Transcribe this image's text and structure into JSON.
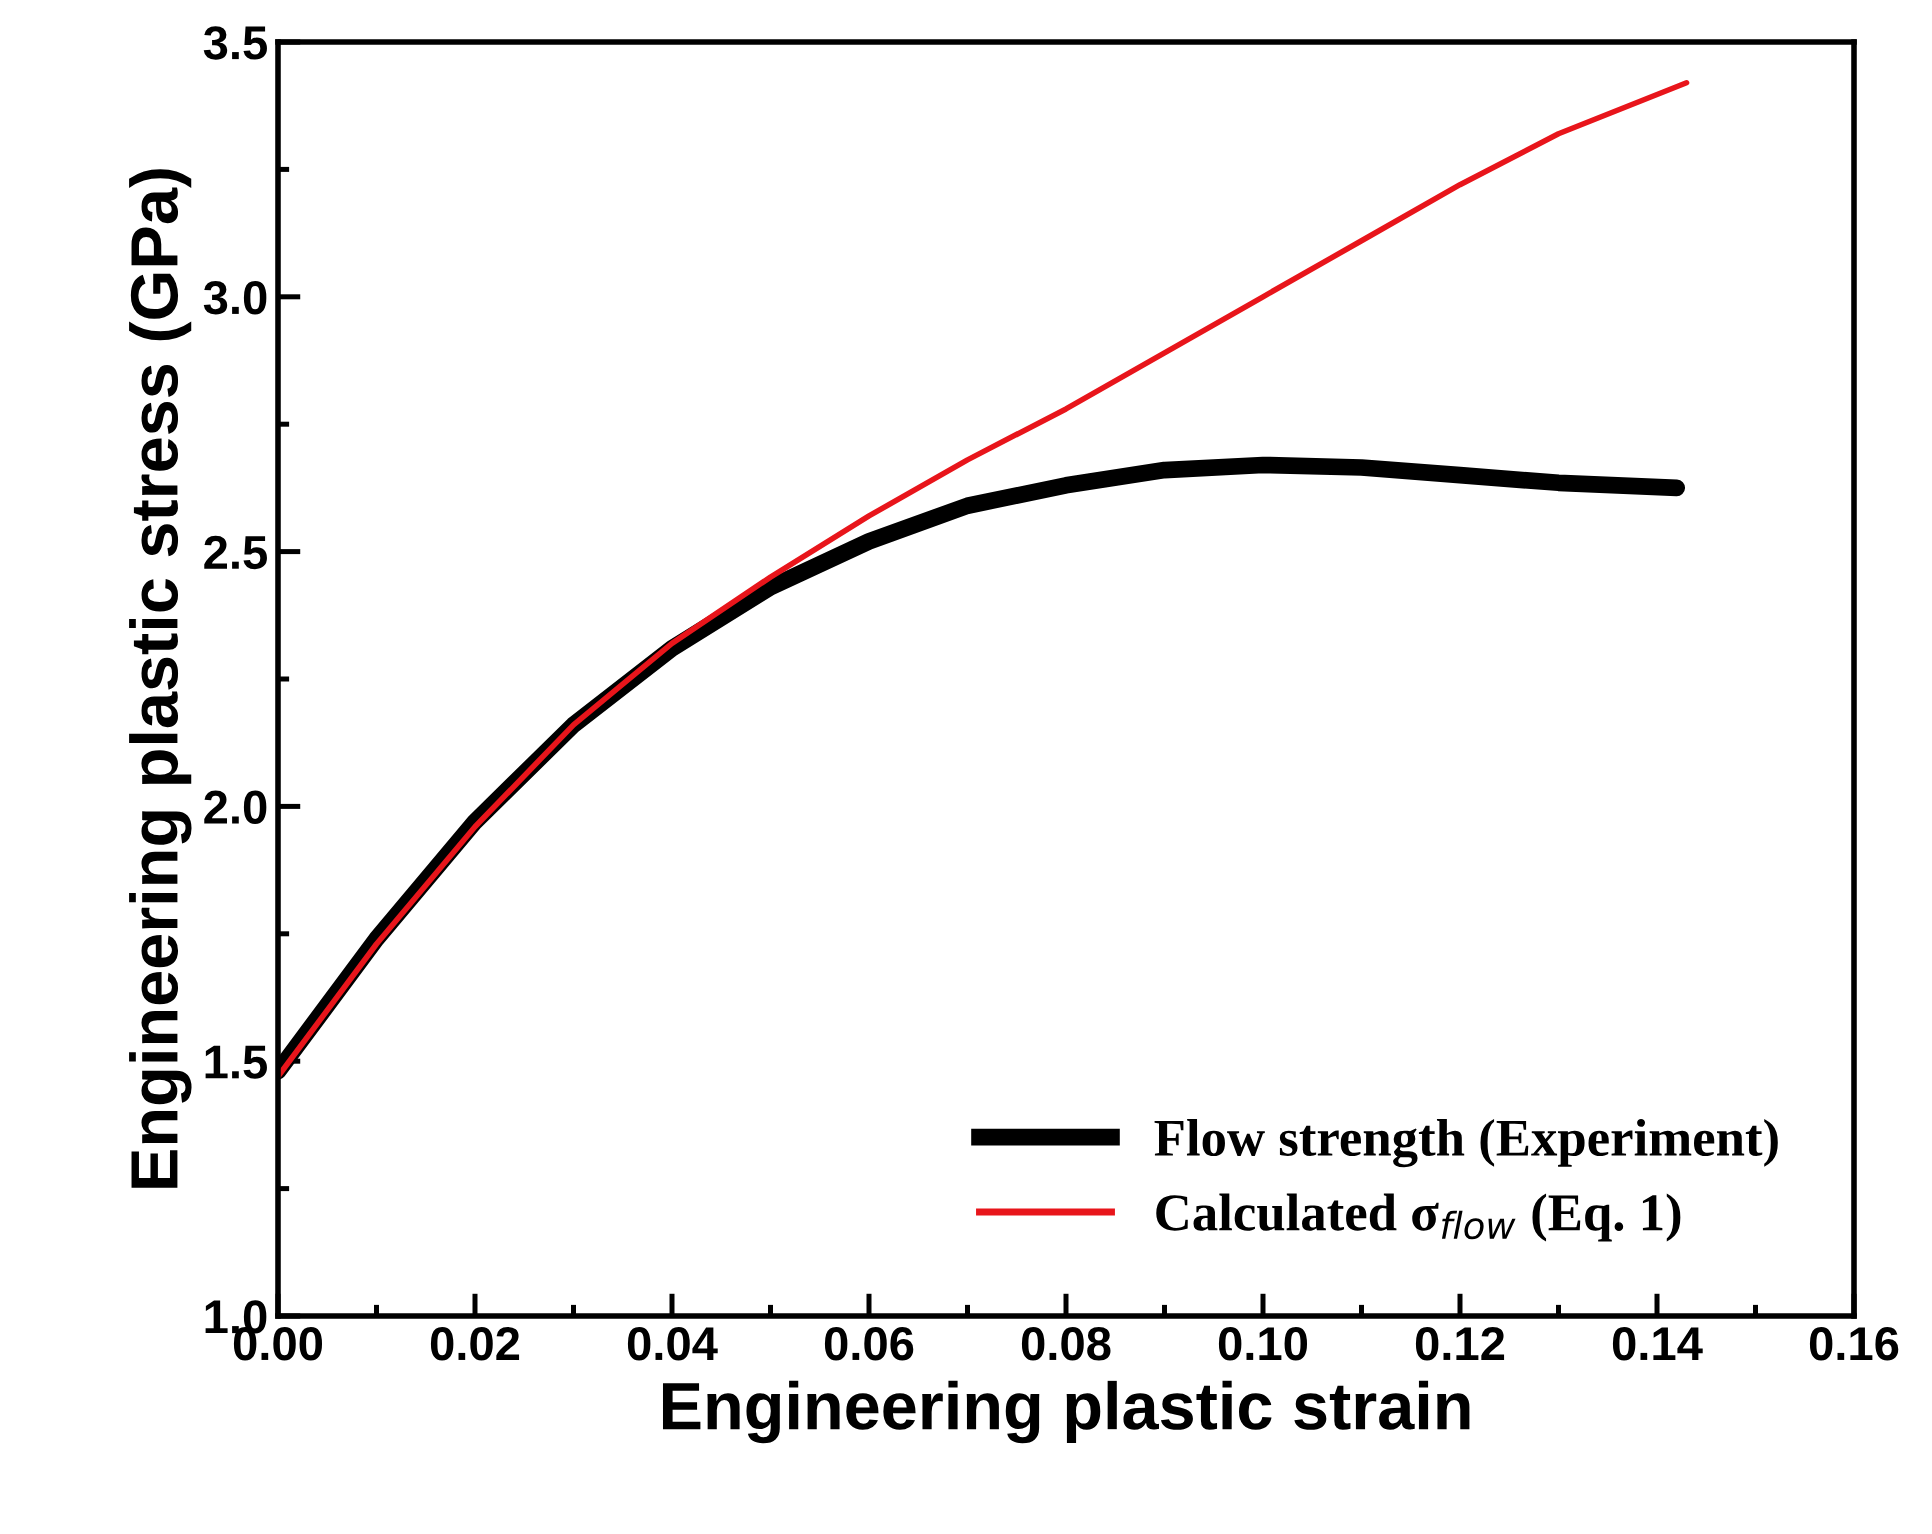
{
  "chart_data": {
    "type": "line",
    "xlabel": "Engineering plastic strain",
    "ylabel": "Engineering plastic stress (GPa)",
    "xlim": [
      0,
      0.16
    ],
    "ylim": [
      1.0,
      3.5
    ],
    "xticks": [
      {
        "value": 0,
        "label": "0.00"
      },
      {
        "value": 0.02,
        "label": "0.02"
      },
      {
        "value": 0.04,
        "label": "0.04"
      },
      {
        "value": 0.06,
        "label": "0.06"
      },
      {
        "value": 0.08,
        "label": "0.08"
      },
      {
        "value": 0.1,
        "label": "0.10"
      },
      {
        "value": 0.12,
        "label": "0.12"
      },
      {
        "value": 0.14,
        "label": "0.14"
      },
      {
        "value": 0.16,
        "label": "0.16"
      }
    ],
    "yticks": [
      {
        "value": 1,
        "label": "1.0"
      },
      {
        "value": 1.5,
        "label": "1.5"
      },
      {
        "value": 2,
        "label": "2.0"
      },
      {
        "value": 2.5,
        "label": "2.5"
      },
      {
        "value": 3,
        "label": "3.0"
      },
      {
        "value": 3.5,
        "label": "3.5"
      }
    ],
    "legend": "bottom right",
    "grid": false,
    "marker": "none",
    "line_style": "solid",
    "series": [
      {
        "name": "Flow strength (Experiment)",
        "color": "#000000",
        "x": [
          0,
          0.01,
          0.02,
          0.03,
          0.04,
          0.05,
          0.06,
          0.07,
          0.08,
          0.09,
          0.1,
          0.11,
          0.12,
          0.13,
          0.142
        ],
        "values": [
          1.48,
          1.74,
          1.97,
          2.16,
          2.31,
          2.43,
          2.52,
          2.59,
          2.63,
          2.66,
          2.67,
          2.665,
          2.65,
          2.635,
          2.625
        ]
      },
      {
        "name": "Calculated σ$_{flow}$ (Eq. 1)",
        "color": "#e8151b",
        "x": [
          0,
          0.01,
          0.02,
          0.03,
          0.04,
          0.05,
          0.06,
          0.07,
          0.08,
          0.09,
          0.1,
          0.11,
          0.12,
          0.13,
          0.143
        ],
        "values": [
          1.47,
          1.73,
          1.96,
          2.16,
          2.32,
          2.45,
          2.57,
          2.68,
          2.78,
          2.89,
          3.0,
          3.11,
          3.22,
          3.32,
          3.42
        ]
      }
    ]
  }
}
